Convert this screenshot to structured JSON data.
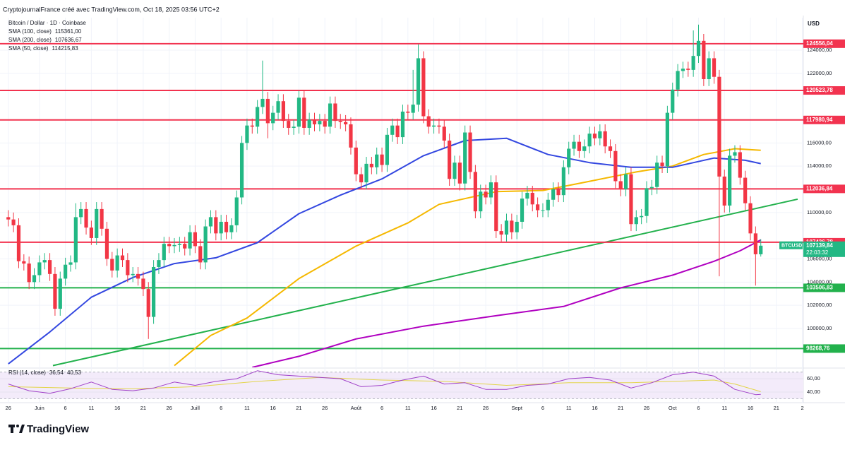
{
  "chart_data": {
    "type": "candlestick",
    "header": "CryptojournalFrance créé avec TradingView.com, Oct 18, 2025 03:56 UTC+2",
    "symbol_title": "Bitcoin / Dollar · 1D · Coinbase",
    "currency": "USD",
    "logo": "TradingView",
    "up_color": "#22b884",
    "down_color": "#f23645",
    "grid": true,
    "xlim": [
      -1.6,
      153.2
    ],
    "ylim": [
      96650,
      126800
    ],
    "xticks": [
      {
        "value": 0,
        "label": "26"
      },
      {
        "value": 6,
        "label": "Juin"
      },
      {
        "value": 11,
        "label": "6"
      },
      {
        "value": 16,
        "label": "11"
      },
      {
        "value": 21,
        "label": "16"
      },
      {
        "value": 26,
        "label": "21"
      },
      {
        "value": 31,
        "label": "26"
      },
      {
        "value": 36,
        "label": "Juill"
      },
      {
        "value": 41,
        "label": "6"
      },
      {
        "value": 46,
        "label": "11"
      },
      {
        "value": 51,
        "label": "16"
      },
      {
        "value": 56,
        "label": "21"
      },
      {
        "value": 61,
        "label": "26"
      },
      {
        "value": 67,
        "label": "Août"
      },
      {
        "value": 72,
        "label": "6"
      },
      {
        "value": 77,
        "label": "11"
      },
      {
        "value": 82,
        "label": "16"
      },
      {
        "value": 87,
        "label": "21"
      },
      {
        "value": 92,
        "label": "26"
      },
      {
        "value": 98,
        "label": "Sept"
      },
      {
        "value": 103,
        "label": "6"
      },
      {
        "value": 108,
        "label": "11"
      },
      {
        "value": 113,
        "label": "16"
      },
      {
        "value": 118,
        "label": "21"
      },
      {
        "value": 123,
        "label": "26"
      },
      {
        "value": 128,
        "label": "Oct"
      },
      {
        "value": 133,
        "label": "6"
      },
      {
        "value": 138,
        "label": "11"
      },
      {
        "value": 143,
        "label": "16"
      },
      {
        "value": 148,
        "label": "21"
      },
      {
        "value": 153,
        "label": "2"
      }
    ],
    "yticks": [
      {
        "value": 100000,
        "label": "100000,00"
      },
      {
        "value": 102000,
        "label": "102000,00"
      },
      {
        "value": 104000,
        "label": "104000,00"
      },
      {
        "value": 106000,
        "label": "106000,00"
      },
      {
        "value": 110000,
        "label": "110000,00"
      },
      {
        "value": 114000,
        "label": "114000,00"
      },
      {
        "value": 116000,
        "label": "116000,00"
      },
      {
        "value": 122000,
        "label": "122000,00"
      },
      {
        "value": 124000,
        "label": "124000,00"
      }
    ],
    "open": [
      109600,
      109400,
      108900,
      105800,
      105600,
      104000,
      104600,
      105700,
      105900,
      104700,
      101700,
      104300,
      105500,
      105700,
      109600,
      110300,
      108700,
      107800,
      110300,
      108600,
      106000,
      105000,
      106300,
      105900,
      104600,
      104700,
      104300,
      103400,
      101000,
      105300,
      105900,
      107300,
      107100,
      107200,
      107300,
      106900,
      108300,
      107100,
      105700,
      108800,
      109600,
      108200,
      109200,
      108300,
      108900,
      111300,
      116000,
      117500,
      117400,
      119100,
      119800,
      117700,
      118600,
      119600,
      117900,
      117300,
      117400,
      119900,
      117300,
      118000,
      117600,
      117900,
      117400,
      119400,
      117900,
      117800,
      117600,
      115600,
      113300,
      112600,
      114200,
      113900,
      115000,
      114100,
      116700,
      117500,
      116500,
      118700,
      118600,
      119300,
      123300,
      118300,
      117400,
      117500,
      117400,
      116200,
      112900,
      114300,
      112500,
      116900,
      113500,
      110100,
      111800,
      111300,
      112600,
      108400,
      108100,
      109300,
      108300,
      109200,
      111200,
      111700,
      110700,
      110200,
      110200,
      111100,
      112000,
      111500,
      113900,
      115500,
      116100,
      115300,
      115700,
      116800,
      116400,
      117000,
      115700,
      115300,
      112700,
      112000,
      113300,
      109000,
      109600,
      109700,
      112100,
      112200,
      114300,
      114000,
      118600,
      120600,
      122200,
      122400,
      122300,
      123500,
      124800,
      121500,
      123300,
      121700,
      113100,
      110600,
      114900,
      115200,
      113000,
      110800,
      108200,
      106400
    ],
    "high": [
      110200,
      110000,
      109500,
      106400,
      106200,
      105200,
      106300,
      106500,
      106500,
      105300,
      104900,
      106100,
      106300,
      110800,
      110900,
      110900,
      109300,
      110900,
      110900,
      109200,
      106600,
      106900,
      106900,
      106500,
      105300,
      105300,
      104900,
      104000,
      105900,
      106500,
      107900,
      107900,
      107800,
      107900,
      107900,
      108900,
      108900,
      107700,
      109400,
      110200,
      110200,
      109800,
      109800,
      109500,
      111900,
      116600,
      118100,
      118100,
      119700,
      123100,
      120400,
      119200,
      120200,
      120200,
      118500,
      118000,
      120500,
      120500,
      118600,
      118600,
      118500,
      118500,
      120000,
      120000,
      118500,
      118400,
      118200,
      116200,
      113900,
      114800,
      114800,
      115600,
      115600,
      117300,
      118100,
      118100,
      119300,
      119300,
      122300,
      124500,
      123900,
      118900,
      118100,
      118100,
      118000,
      116800,
      114900,
      114900,
      117500,
      117500,
      114100,
      112400,
      112400,
      113200,
      113200,
      109000,
      109900,
      109900,
      109800,
      111800,
      112300,
      112300,
      111300,
      110800,
      111700,
      112600,
      112600,
      114500,
      116100,
      116700,
      116700,
      116300,
      117400,
      117400,
      117600,
      117600,
      116300,
      115900,
      113300,
      113900,
      113900,
      110200,
      110300,
      112700,
      112800,
      114900,
      114900,
      119200,
      121200,
      122800,
      123000,
      123000,
      125700,
      126200,
      125400,
      123900,
      123900,
      122300,
      113700,
      115500,
      115800,
      115800,
      113600,
      111400,
      108800,
      107700
    ],
    "low": [
      108800,
      108300,
      105200,
      105000,
      103400,
      103400,
      104000,
      105100,
      104100,
      101100,
      101100,
      103700,
      104900,
      105100,
      109000,
      108100,
      107200,
      107200,
      108000,
      105400,
      104400,
      104400,
      105300,
      104000,
      104000,
      103700,
      102800,
      99100,
      100400,
      104700,
      105300,
      106500,
      106500,
      106600,
      106300,
      106300,
      106500,
      105100,
      105100,
      108200,
      107600,
      107600,
      107700,
      107700,
      108300,
      110700,
      115400,
      116800,
      116800,
      118500,
      116400,
      117100,
      118000,
      117300,
      116700,
      116700,
      116800,
      116700,
      116700,
      117000,
      117000,
      116800,
      116800,
      117300,
      117200,
      117000,
      115000,
      112700,
      112000,
      112000,
      113300,
      113300,
      113500,
      113500,
      116100,
      115900,
      115900,
      118000,
      118000,
      118700,
      117700,
      116800,
      116800,
      116800,
      115600,
      112300,
      112300,
      111900,
      111900,
      112900,
      109500,
      109500,
      110700,
      110700,
      107800,
      107500,
      107500,
      107700,
      107700,
      108600,
      110600,
      110100,
      109600,
      109600,
      109600,
      110500,
      110900,
      110900,
      113300,
      114900,
      114700,
      114700,
      115100,
      115800,
      115800,
      115100,
      114700,
      112100,
      111400,
      111400,
      108400,
      108400,
      109000,
      109100,
      111500,
      111600,
      113400,
      113400,
      118000,
      120000,
      121600,
      121700,
      121700,
      122900,
      120900,
      120900,
      121100,
      104500,
      110000,
      110000,
      114300,
      112400,
      110200,
      107600,
      103700,
      106200
    ],
    "close": [
      109400,
      108900,
      105800,
      105600,
      104000,
      104600,
      105700,
      105900,
      104700,
      101700,
      104300,
      105500,
      105700,
      109600,
      110300,
      108700,
      107800,
      110300,
      108600,
      106000,
      105000,
      106300,
      105900,
      104600,
      104700,
      104300,
      103400,
      101000,
      105300,
      105900,
      107300,
      107100,
      107200,
      107300,
      106900,
      108300,
      107100,
      105700,
      108800,
      109600,
      108200,
      109200,
      108300,
      108900,
      111300,
      116000,
      117500,
      117400,
      119100,
      119800,
      117700,
      118600,
      119600,
      117900,
      117300,
      117400,
      119900,
      117300,
      118000,
      117600,
      117900,
      117400,
      119400,
      117900,
      117800,
      117600,
      115600,
      113300,
      112600,
      114200,
      113900,
      115000,
      114100,
      116700,
      117500,
      116500,
      118700,
      118600,
      119300,
      123300,
      118300,
      117400,
      117500,
      117400,
      116200,
      112900,
      114300,
      112500,
      116900,
      113500,
      110100,
      111800,
      111300,
      112600,
      108400,
      108100,
      109300,
      108300,
      109200,
      111200,
      111700,
      110700,
      110200,
      110200,
      111100,
      112000,
      111500,
      113900,
      115500,
      116100,
      115300,
      115700,
      116800,
      116400,
      117000,
      115700,
      115300,
      112700,
      112000,
      113300,
      109000,
      109600,
      109700,
      112100,
      112200,
      114300,
      114000,
      118600,
      120600,
      122200,
      122400,
      122300,
      123500,
      124800,
      121500,
      123300,
      121700,
      113100,
      110600,
      114900,
      115200,
      113000,
      110800,
      108200,
      106400,
      107139.84
    ],
    "indicators": [
      {
        "name": "SMA (100, close)",
        "color": "#f5b800",
        "x": [
          32,
          39,
          46,
          56,
          67,
          77,
          83,
          94,
          103,
          111,
          121,
          128,
          134,
          140,
          145
        ],
        "values": [
          96800,
          99400,
          100900,
          104300,
          107100,
          109100,
          110700,
          111800,
          111900,
          112600,
          113500,
          114000,
          115000,
          115500,
          115361
        ],
        "last_value": 115361,
        "last_label": "115361,00"
      },
      {
        "name": "SMA (200, close)",
        "color": "#b000c0",
        "x": [
          47,
          56,
          67,
          80,
          94,
          107,
          118,
          128,
          136,
          141,
          145
        ],
        "values": [
          96650,
          97600,
          99100,
          100200,
          101100,
          101900,
          103500,
          104600,
          105800,
          106700,
          107636.67
        ],
        "last_value": 107636.67,
        "last_label": "107636,67"
      },
      {
        "name": "SMA (50, close)",
        "color": "#3347e0",
        "x": [
          0,
          8,
          16,
          24,
          32,
          40,
          48,
          56,
          64,
          72,
          80,
          88,
          96,
          104,
          112,
          120,
          128,
          136,
          142,
          145
        ],
        "values": [
          96950,
          99700,
          102700,
          104400,
          105600,
          106100,
          107400,
          109900,
          111500,
          112900,
          114900,
          116200,
          116400,
          115000,
          114300,
          113900,
          113900,
          114700,
          114500,
          114215.83
        ],
        "last_value": 114215.83,
        "last_label": "114215,83"
      }
    ],
    "trendline": {
      "color": "#22b14c",
      "x": [
        8.6,
        152.1
      ],
      "values": [
        96800,
        111150
      ]
    },
    "levels": [
      {
        "value": 124556.04,
        "label": "124556,04",
        "color": "#f2334f"
      },
      {
        "value": 120523.78,
        "label": "120523,78",
        "color": "#f2334f"
      },
      {
        "value": 117980.94,
        "label": "117980,94",
        "color": "#f2334f"
      },
      {
        "value": 112036.84,
        "label": "112036,84",
        "color": "#f2334f"
      },
      {
        "value": 107436.78,
        "label": "107436,78",
        "color": "#f2334f"
      },
      {
        "value": 103506.83,
        "label": "103506,83",
        "color": "#22b14c"
      },
      {
        "value": 98268.76,
        "label": "98268,76",
        "color": "#22b14c"
      }
    ],
    "last_price": {
      "symbol": "BTCUSD",
      "value": 107139.84,
      "label": "107139,84",
      "countdown": "22:03:32",
      "color": "#22b884"
    },
    "rsi": {
      "name": "RSI (14, close)",
      "color": "#a040c8",
      "ylim": [
        24,
        75
      ],
      "bands": [
        30,
        70
      ],
      "yticks": [
        {
          "value": 60,
          "label": "60,00"
        },
        {
          "value": 40,
          "label": "40,00"
        }
      ],
      "x": [
        0,
        4,
        8,
        12,
        16,
        20,
        24,
        28,
        32,
        36,
        40,
        44,
        48,
        52,
        56,
        60,
        64,
        68,
        72,
        76,
        80,
        84,
        88,
        92,
        96,
        100,
        104,
        108,
        112,
        116,
        120,
        124,
        128,
        132,
        136,
        140,
        144,
        145
      ],
      "values": [
        52,
        42,
        38,
        45,
        55,
        44,
        42,
        46,
        55,
        50,
        56,
        60,
        72,
        66,
        64,
        62,
        60,
        48,
        50,
        58,
        64,
        52,
        54,
        44,
        44,
        50,
        52,
        60,
        62,
        58,
        46,
        54,
        66,
        70,
        64,
        44,
        36,
        36.54
      ],
      "last_value": 36.54,
      "last_label": "36,54",
      "ma": {
        "color": "#e3d54a",
        "x": [
          0,
          12,
          24,
          36,
          48,
          60,
          72,
          84,
          96,
          108,
          120,
          128,
          136,
          140,
          145
        ],
        "values": [
          48,
          46,
          45,
          48,
          56,
          62,
          58,
          56,
          50,
          54,
          54,
          56,
          58,
          52,
          40.53
        ],
        "last_value": 40.53,
        "last_label": "40,53"
      }
    }
  }
}
